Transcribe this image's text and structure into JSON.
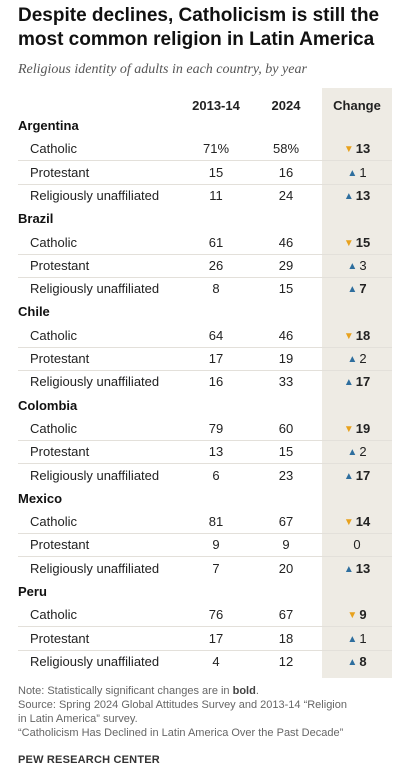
{
  "chart_data": {
    "type": "table",
    "title": "Despite declines, Catholicism is still the most common religion in Latin America",
    "subtitle": "Religious identity of adults in each country, by year",
    "columns": [
      "2013-14",
      "2024",
      "Change"
    ],
    "countries": [
      {
        "name": "Argentina",
        "rows": [
          {
            "label": "Catholic",
            "y2013": "71%",
            "y2024": "58%",
            "change": 13,
            "direction": "down",
            "significant": true
          },
          {
            "label": "Protestant",
            "y2013": "15",
            "y2024": "16",
            "change": 1,
            "direction": "up",
            "significant": false
          },
          {
            "label": "Religiously unaffiliated",
            "y2013": "11",
            "y2024": "24",
            "change": 13,
            "direction": "up",
            "significant": true
          }
        ]
      },
      {
        "name": "Brazil",
        "rows": [
          {
            "label": "Catholic",
            "y2013": "61",
            "y2024": "46",
            "change": 15,
            "direction": "down",
            "significant": true
          },
          {
            "label": "Protestant",
            "y2013": "26",
            "y2024": "29",
            "change": 3,
            "direction": "up",
            "significant": false
          },
          {
            "label": "Religiously unaffiliated",
            "y2013": "8",
            "y2024": "15",
            "change": 7,
            "direction": "up",
            "significant": true
          }
        ]
      },
      {
        "name": "Chile",
        "rows": [
          {
            "label": "Catholic",
            "y2013": "64",
            "y2024": "46",
            "change": 18,
            "direction": "down",
            "significant": true
          },
          {
            "label": "Protestant",
            "y2013": "17",
            "y2024": "19",
            "change": 2,
            "direction": "up",
            "significant": false
          },
          {
            "label": "Religiously unaffiliated",
            "y2013": "16",
            "y2024": "33",
            "change": 17,
            "direction": "up",
            "significant": true
          }
        ]
      },
      {
        "name": "Colombia",
        "rows": [
          {
            "label": "Catholic",
            "y2013": "79",
            "y2024": "60",
            "change": 19,
            "direction": "down",
            "significant": true
          },
          {
            "label": "Protestant",
            "y2013": "13",
            "y2024": "15",
            "change": 2,
            "direction": "up",
            "significant": false
          },
          {
            "label": "Religiously unaffiliated",
            "y2013": "6",
            "y2024": "23",
            "change": 17,
            "direction": "up",
            "significant": true
          }
        ]
      },
      {
        "name": "Mexico",
        "rows": [
          {
            "label": "Catholic",
            "y2013": "81",
            "y2024": "67",
            "change": 14,
            "direction": "down",
            "significant": true
          },
          {
            "label": "Protestant",
            "y2013": "9",
            "y2024": "9",
            "change": 0,
            "direction": "none",
            "significant": false
          },
          {
            "label": "Religiously unaffiliated",
            "y2013": "7",
            "y2024": "20",
            "change": 13,
            "direction": "up",
            "significant": true
          }
        ]
      },
      {
        "name": "Peru",
        "rows": [
          {
            "label": "Catholic",
            "y2013": "76",
            "y2024": "67",
            "change": 9,
            "direction": "down",
            "significant": true
          },
          {
            "label": "Protestant",
            "y2013": "17",
            "y2024": "18",
            "change": 1,
            "direction": "up",
            "significant": false
          },
          {
            "label": "Religiously unaffiliated",
            "y2013": "4",
            "y2024": "12",
            "change": 8,
            "direction": "up",
            "significant": true
          }
        ]
      }
    ],
    "colors": {
      "down": "#e8a21e",
      "up": "#2e6e9e",
      "change_bg": "#eeebe4"
    }
  },
  "notes": {
    "note_prefix": "Note: Statistically significant changes are in ",
    "note_bold": "bold",
    "note_suffix": ".",
    "source_line1": "Source: Spring 2024 Global Attitudes Survey and 2013-14 “Religion",
    "source_line2": "in Latin America” survey.",
    "report": "“Catholicism Has Declined in Latin America Over the Past Decade”",
    "org": "PEW RESEARCH CENTER"
  }
}
